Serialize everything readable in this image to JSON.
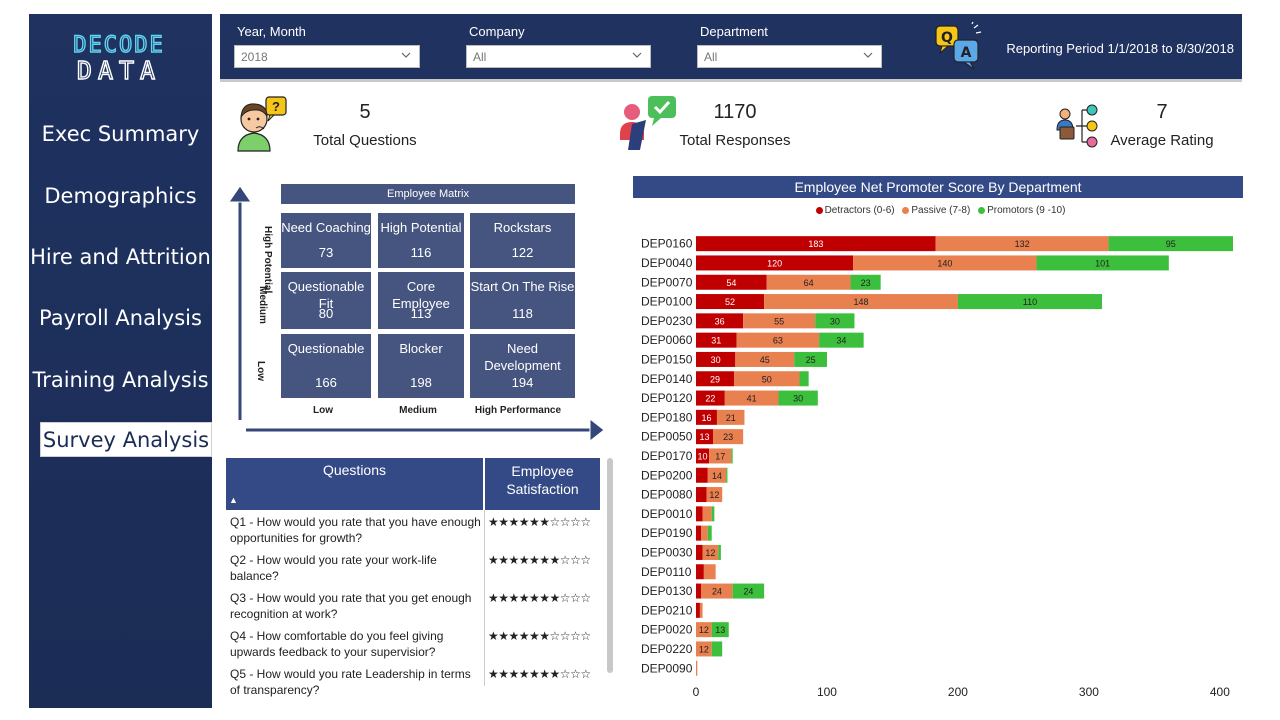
{
  "brand": {
    "logo_top": "DECODE",
    "logo_bottom": "DATA"
  },
  "nav": {
    "items": [
      {
        "label": "Exec Summary",
        "active": false
      },
      {
        "label": "Demographics",
        "active": false
      },
      {
        "label": "Hire and Attrition",
        "active": false
      },
      {
        "label": "Payroll Analysis",
        "active": false
      },
      {
        "label": "Training Analysis",
        "active": false
      },
      {
        "label": "Survey Analysis",
        "active": true
      }
    ]
  },
  "filters": [
    {
      "label": "Year, Month",
      "value": "2018"
    },
    {
      "label": "Company",
      "value": "All"
    },
    {
      "label": "Department",
      "value": "All"
    }
  ],
  "reporting_period": "Reporting Period 1/1/2018 to 8/30/2018",
  "kpis": [
    {
      "value": "5",
      "label": "Total Questions",
      "icon": "thinking-person-icon"
    },
    {
      "value": "1170",
      "label": "Total Responses",
      "icon": "feedback-check-icon"
    },
    {
      "value": "7",
      "label": "Average Rating",
      "icon": "rating-tree-icon"
    }
  ],
  "matrix": {
    "title": "Employee Matrix",
    "y_labels": [
      "High Potential",
      "Medium",
      "Low"
    ],
    "x_labels": [
      "Low",
      "Medium",
      "High Performance"
    ],
    "cells": [
      {
        "name": "Need Coaching",
        "value": "73"
      },
      {
        "name": "High Potential",
        "value": "116"
      },
      {
        "name": "Rockstars",
        "value": "122"
      },
      {
        "name": "Questionable Fit",
        "value": "80"
      },
      {
        "name": "Core Employee",
        "value": "113"
      },
      {
        "name": "Start On The Rise",
        "value": "118"
      },
      {
        "name": "Questionable",
        "value": "166"
      },
      {
        "name": "Blocker",
        "value": "198"
      },
      {
        "name": "Need Development",
        "value": "194"
      }
    ]
  },
  "questions": {
    "header_q": "Questions",
    "header_s": "Employee Satisfaction",
    "sort_glyph": "▲",
    "rows": [
      {
        "q": "Q1 - How would you rate that you have enough opportunities for growth?",
        "stars": "★★★★★★☆☆☆☆"
      },
      {
        "q": "Q2 - How would you rate your work-life balance?",
        "stars": "★★★★★★★☆☆☆"
      },
      {
        "q": "Q3 - How would you rate that you get enough recognition at work?",
        "stars": "★★★★★★★☆☆☆"
      },
      {
        "q": "Q4 - How comfortable do you feel giving upwards feedback to your supervisior?",
        "stars": "★★★★★★☆☆☆☆"
      },
      {
        "q": "Q5 - How would you rate Leadership in terms of transparency?",
        "stars": "★★★★★★★☆☆☆"
      }
    ]
  },
  "colors": {
    "detractors": "#c00000",
    "passive": "#e8804f",
    "promotors": "#3cbf3c",
    "navy": "#1f3260"
  },
  "chart_data": {
    "type": "bar",
    "orientation": "horizontal",
    "stacked": true,
    "title": "Employee Net Promoter Score By Department",
    "legend": [
      "Detractors (0-6)",
      "Passive (7-8)",
      "Promotors (9 -10)"
    ],
    "categories": [
      "DEP0160",
      "DEP0040",
      "DEP0070",
      "DEP0100",
      "DEP0230",
      "DEP0060",
      "DEP0150",
      "DEP0140",
      "DEP0120",
      "DEP0180",
      "DEP0050",
      "DEP0170",
      "DEP0200",
      "DEP0080",
      "DEP0010",
      "DEP0190",
      "DEP0030",
      "DEP0110",
      "DEP0130",
      "DEP0210",
      "DEP0020",
      "DEP0220",
      "DEP0090"
    ],
    "series": [
      {
        "name": "Detractors (0-6)",
        "values": [
          183,
          120,
          54,
          52,
          36,
          31,
          30,
          29,
          22,
          16,
          13,
          10,
          9,
          8,
          5,
          4,
          5,
          6,
          4,
          3,
          0,
          0,
          0
        ]
      },
      {
        "name": "Passive (7-8)",
        "values": [
          132,
          140,
          64,
          148,
          55,
          63,
          45,
          50,
          41,
          21,
          23,
          17,
          14,
          12,
          7,
          5,
          12,
          9,
          24,
          2,
          12,
          12,
          1
        ]
      },
      {
        "name": "Promotors (9 -10)",
        "values": [
          95,
          101,
          23,
          110,
          30,
          34,
          25,
          7,
          30,
          0,
          0,
          1,
          1,
          0,
          2,
          3,
          2,
          0,
          24,
          0,
          13,
          8,
          0
        ]
      }
    ],
    "xlim": [
      0,
      410
    ],
    "xticks": [
      0,
      100,
      200,
      300,
      400
    ]
  }
}
